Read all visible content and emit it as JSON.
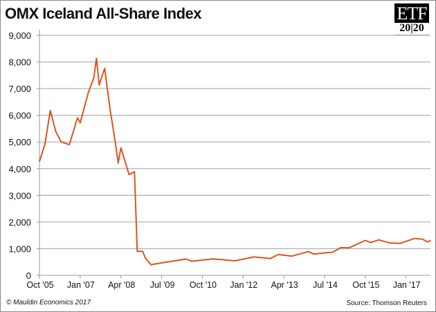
{
  "logo": {
    "top": "ETF",
    "bottom": "20|20"
  },
  "footer": {
    "copyright": "© Mauldin Economics 2017",
    "source": "Source: Thomson Reuters"
  },
  "chart_data": {
    "type": "line",
    "title": "OMX Iceland All-Share Index",
    "xlabel": "",
    "ylabel": "",
    "ylim": [
      0,
      9000
    ],
    "xlim": [
      "2005-10",
      "2017-10"
    ],
    "grid": true,
    "y_ticks": [
      "0",
      "1,000",
      "2,000",
      "3,000",
      "4,000",
      "5,000",
      "6,000",
      "7,000",
      "8,000",
      "9,000"
    ],
    "x_ticks": [
      {
        "date": "2005-10",
        "label": "Oct '05"
      },
      {
        "date": "2007-01",
        "label": "Jan '07"
      },
      {
        "date": "2008-04",
        "label": "Apr '08"
      },
      {
        "date": "2009-07",
        "label": "Jul '09"
      },
      {
        "date": "2010-10",
        "label": "Oct '10"
      },
      {
        "date": "2012-01",
        "label": "Jan '12"
      },
      {
        "date": "2013-04",
        "label": "Apr '13"
      },
      {
        "date": "2014-07",
        "label": "Jul '14"
      },
      {
        "date": "2015-10",
        "label": "Oct '15"
      },
      {
        "date": "2017-01",
        "label": "Jan '17"
      }
    ],
    "line_color": "#e0521b",
    "series": [
      {
        "x": [
          "2005-10",
          "2005-12",
          "2006-02",
          "2006-04",
          "2006-06",
          "2006-09",
          "2006-12",
          "2007-01",
          "2007-04",
          "2007-06",
          "2007-07",
          "2007-08",
          "2007-10",
          "2007-12",
          "2008-02",
          "2008-03",
          "2008-04",
          "2008-07",
          "2008-09",
          "2008-10",
          "2008-12",
          "2009-01",
          "2009-03",
          "2009-07",
          "2010-04",
          "2010-06",
          "2011-02",
          "2011-10",
          "2012-05",
          "2012-11",
          "2013-02",
          "2013-07",
          "2014-01",
          "2014-03",
          "2014-10",
          "2015-01",
          "2015-04",
          "2015-10",
          "2015-12",
          "2016-03",
          "2016-07",
          "2016-11",
          "2017-04",
          "2017-07",
          "2017-09",
          "2017-10"
        ],
        "values": [
          4270,
          4900,
          6180,
          5400,
          5000,
          4900,
          5900,
          5720,
          6850,
          7400,
          8140,
          7140,
          7760,
          6230,
          4940,
          4210,
          4780,
          3780,
          3880,
          900,
          900,
          650,
          400,
          466,
          610,
          530,
          615,
          545,
          690,
          630,
          780,
          720,
          890,
          800,
          870,
          1040,
          1030,
          1310,
          1230,
          1330,
          1210,
          1200,
          1380,
          1360,
          1250,
          1310
        ]
      }
    ]
  }
}
